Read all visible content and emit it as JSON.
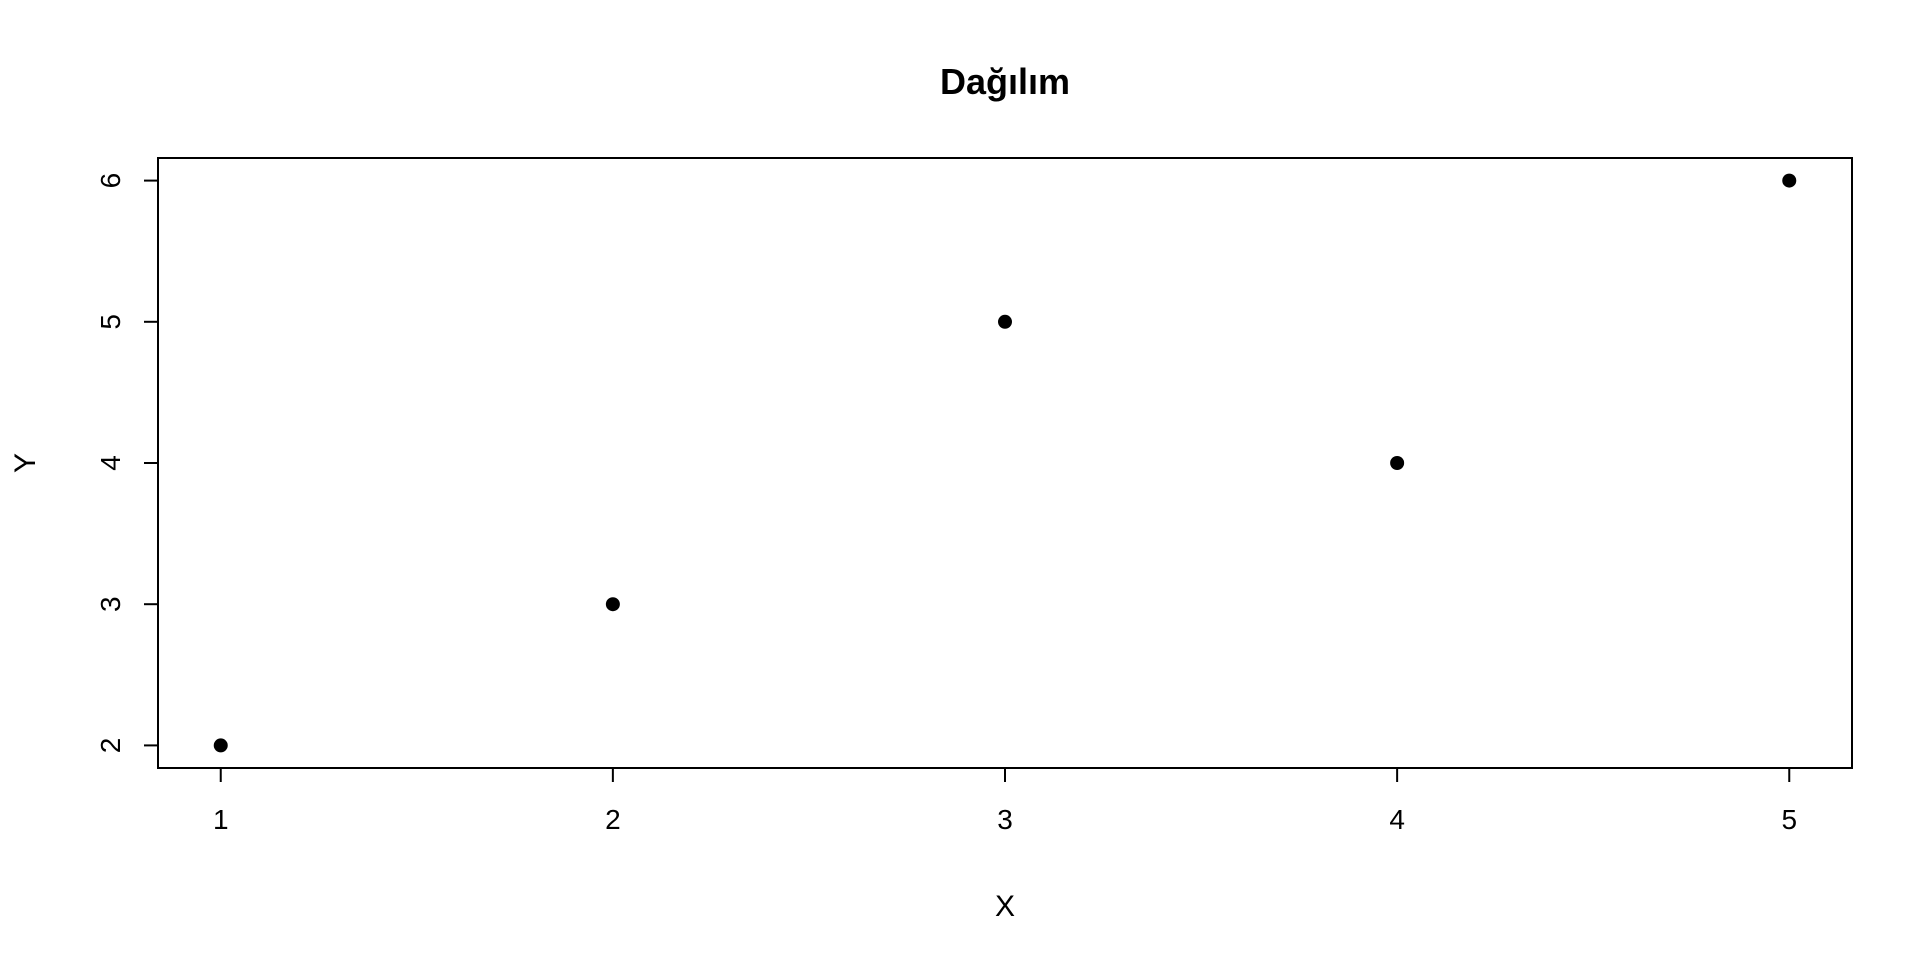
{
  "chart_data": {
    "type": "scatter",
    "title": "Dağılım",
    "xlabel": "X",
    "ylabel": "Y",
    "x": [
      1,
      2,
      3,
      4,
      5
    ],
    "y": [
      2,
      3,
      5,
      4,
      6
    ],
    "xlim": [
      0.84,
      5.16
    ],
    "ylim": [
      1.84,
      6.16
    ],
    "xticks": [
      1,
      2,
      3,
      4,
      5
    ],
    "yticks": [
      2,
      3,
      4,
      5,
      6
    ],
    "grid": false,
    "point_color": "#000000",
    "marker": "filled-circle"
  }
}
